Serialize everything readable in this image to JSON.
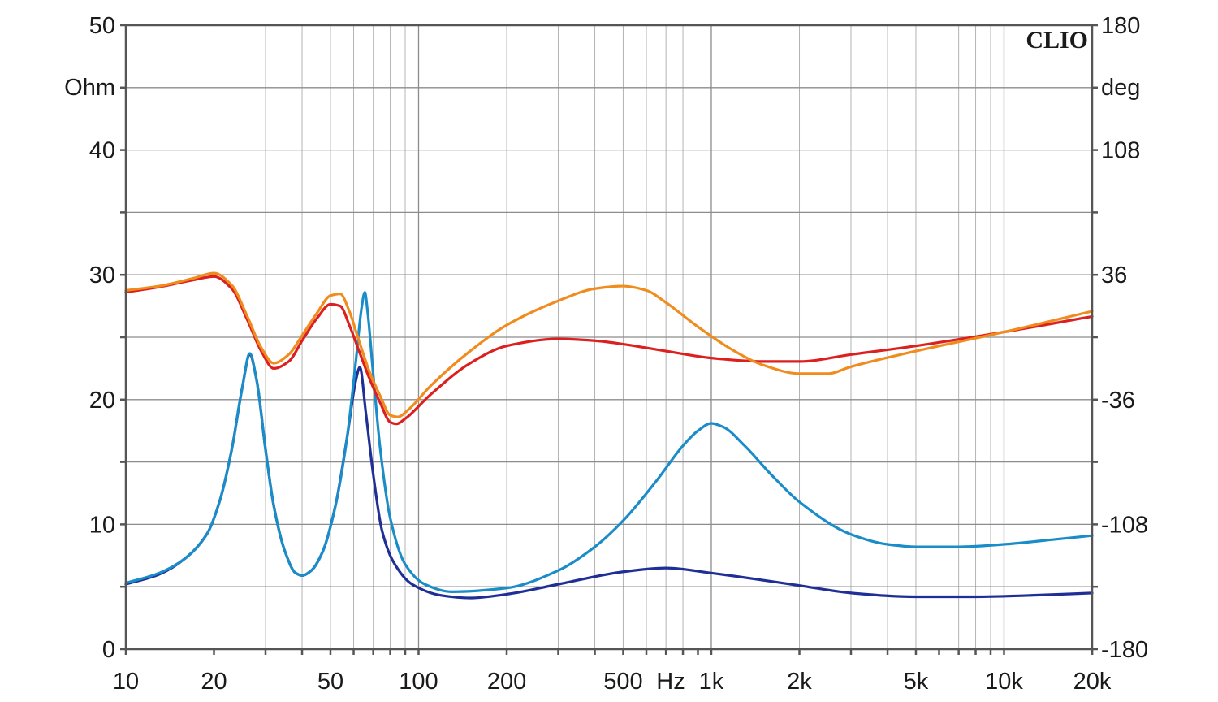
{
  "chart_data": {
    "type": "line",
    "brand": "CLIO",
    "x_scale": "log",
    "xlim": [
      10,
      20000
    ],
    "ylim_left": [
      0,
      50
    ],
    "ylim_right": [
      -180,
      180
    ],
    "left_unit": "Ohm",
    "right_unit": "deg",
    "x_unit_label": "Hz",
    "grid": true,
    "x_ticks": [
      {
        "value": 10,
        "label": "10"
      },
      {
        "value": 20,
        "label": "20"
      },
      {
        "value": 50,
        "label": "50"
      },
      {
        "value": 100,
        "label": "100"
      },
      {
        "value": 200,
        "label": "200"
      },
      {
        "value": 500,
        "label": "500"
      },
      {
        "value": 1000,
        "label": "1k"
      },
      {
        "value": 2000,
        "label": "2k"
      },
      {
        "value": 5000,
        "label": "5k"
      },
      {
        "value": 10000,
        "label": "10k"
      },
      {
        "value": 20000,
        "label": "20k"
      }
    ],
    "y_ticks_left": [
      {
        "value": 0,
        "label": "0"
      },
      {
        "value": 10,
        "label": "10"
      },
      {
        "value": 20,
        "label": "20"
      },
      {
        "value": 30,
        "label": "30"
      },
      {
        "value": 40,
        "label": "40"
      },
      {
        "value": 50,
        "label": "50"
      }
    ],
    "y_ticks_right": [
      {
        "value": -180,
        "label": "-180"
      },
      {
        "value": -108,
        "label": "-108"
      },
      {
        "value": -36,
        "label": "-36"
      },
      {
        "value": 36,
        "label": "36"
      },
      {
        "value": 108,
        "label": "108"
      },
      {
        "value": 180,
        "label": "180"
      }
    ],
    "series": [
      {
        "color": "#1f2f96",
        "axis": "left",
        "points": [
          [
            10,
            5.2
          ],
          [
            13,
            6
          ],
          [
            16,
            7.3
          ],
          [
            19,
            9.3
          ],
          [
            21,
            12
          ],
          [
            23,
            16
          ],
          [
            25,
            21
          ],
          [
            26.5,
            23.6
          ],
          [
            28,
            21.5
          ],
          [
            30,
            16
          ],
          [
            32,
            11.5
          ],
          [
            35,
            7.8
          ],
          [
            38,
            6.1
          ],
          [
            40,
            5.9
          ],
          [
            43,
            6.3
          ],
          [
            47,
            7.8
          ],
          [
            52,
            11.5
          ],
          [
            57,
            17
          ],
          [
            61,
            21.5
          ],
          [
            63,
            22.6
          ],
          [
            66,
            19
          ],
          [
            70,
            14
          ],
          [
            75,
            9.5
          ],
          [
            82,
            7
          ],
          [
            95,
            5.2
          ],
          [
            120,
            4.3
          ],
          [
            150,
            4.1
          ],
          [
            200,
            4.4
          ],
          [
            300,
            5.2
          ],
          [
            500,
            6.2
          ],
          [
            700,
            6.5
          ],
          [
            1000,
            6.1
          ],
          [
            2000,
            5.1
          ],
          [
            3000,
            4.5
          ],
          [
            5000,
            4.2
          ],
          [
            8000,
            4.2
          ],
          [
            12000,
            4.3
          ],
          [
            20000,
            4.5
          ]
        ]
      },
      {
        "color": "#1a8cc8",
        "axis": "left",
        "points": [
          [
            10,
            5.3
          ],
          [
            13,
            6.1
          ],
          [
            16,
            7.3
          ],
          [
            19,
            9.3
          ],
          [
            21,
            12
          ],
          [
            23,
            16
          ],
          [
            25,
            21
          ],
          [
            26.5,
            23.7
          ],
          [
            28,
            21.5
          ],
          [
            30,
            16
          ],
          [
            32,
            11.5
          ],
          [
            35,
            7.8
          ],
          [
            38,
            6.1
          ],
          [
            40,
            5.9
          ],
          [
            43,
            6.3
          ],
          [
            47,
            7.8
          ],
          [
            52,
            11.5
          ],
          [
            57,
            17
          ],
          [
            61,
            23
          ],
          [
            64,
            27.5
          ],
          [
            65.5,
            28.6
          ],
          [
            67,
            27
          ],
          [
            70,
            22
          ],
          [
            74,
            16
          ],
          [
            80,
            10.5
          ],
          [
            90,
            6.8
          ],
          [
            105,
            5.2
          ],
          [
            130,
            4.6
          ],
          [
            200,
            4.9
          ],
          [
            300,
            6.3
          ],
          [
            400,
            8.2
          ],
          [
            500,
            10.3
          ],
          [
            650,
            13.5
          ],
          [
            800,
            16.3
          ],
          [
            900,
            17.5
          ],
          [
            1000,
            18.1
          ],
          [
            1100,
            17.8
          ],
          [
            1300,
            16.3
          ],
          [
            1600,
            14
          ],
          [
            2000,
            11.8
          ],
          [
            3000,
            9.2
          ],
          [
            4000,
            8.4
          ],
          [
            5000,
            8.2
          ],
          [
            7000,
            8.2
          ],
          [
            10000,
            8.4
          ],
          [
            15000,
            8.8
          ],
          [
            20000,
            9.1
          ]
        ]
      },
      {
        "color": "#dc2020",
        "axis": "right",
        "points": [
          [
            10,
            26
          ],
          [
            13,
            29
          ],
          [
            17,
            33
          ],
          [
            20,
            35
          ],
          [
            23,
            28
          ],
          [
            26,
            10
          ],
          [
            29,
            -8
          ],
          [
            32,
            -18
          ],
          [
            36,
            -14
          ],
          [
            40,
            -2
          ],
          [
            45,
            11
          ],
          [
            50,
            19
          ],
          [
            54,
            18
          ],
          [
            58,
            7
          ],
          [
            62,
            -6
          ],
          [
            68,
            -24
          ],
          [
            74,
            -38
          ],
          [
            80,
            -49
          ],
          [
            84,
            -50
          ],
          [
            90,
            -47
          ],
          [
            110,
            -33
          ],
          [
            150,
            -15
          ],
          [
            200,
            -5
          ],
          [
            300,
            -1
          ],
          [
            400,
            -2
          ],
          [
            500,
            -4
          ],
          [
            700,
            -8
          ],
          [
            1000,
            -12
          ],
          [
            1500,
            -14
          ],
          [
            2000,
            -14
          ],
          [
            3000,
            -10
          ],
          [
            5000,
            -5
          ],
          [
            10000,
            3
          ],
          [
            20000,
            12
          ]
        ]
      },
      {
        "color": "#f08c1e",
        "axis": "right",
        "points": [
          [
            10,
            27
          ],
          [
            13,
            29.5
          ],
          [
            17,
            34
          ],
          [
            20,
            37
          ],
          [
            23,
            30
          ],
          [
            26,
            12
          ],
          [
            29,
            -6
          ],
          [
            32,
            -15
          ],
          [
            36,
            -10
          ],
          [
            40,
            1
          ],
          [
            45,
            14
          ],
          [
            50,
            24
          ],
          [
            54,
            25
          ],
          [
            58,
            15
          ],
          [
            62,
            0
          ],
          [
            68,
            -20
          ],
          [
            74,
            -34
          ],
          [
            80,
            -45
          ],
          [
            85,
            -46
          ],
          [
            92,
            -42
          ],
          [
            110,
            -28
          ],
          [
            150,
            -8
          ],
          [
            200,
            7
          ],
          [
            300,
            21
          ],
          [
            400,
            28
          ],
          [
            500,
            29.5
          ],
          [
            600,
            27
          ],
          [
            700,
            20
          ],
          [
            900,
            6
          ],
          [
            1200,
            -8
          ],
          [
            1500,
            -16
          ],
          [
            2000,
            -21
          ],
          [
            2500,
            -21
          ],
          [
            3000,
            -17
          ],
          [
            5000,
            -8
          ],
          [
            10000,
            3
          ],
          [
            20000,
            15
          ]
        ]
      }
    ]
  }
}
